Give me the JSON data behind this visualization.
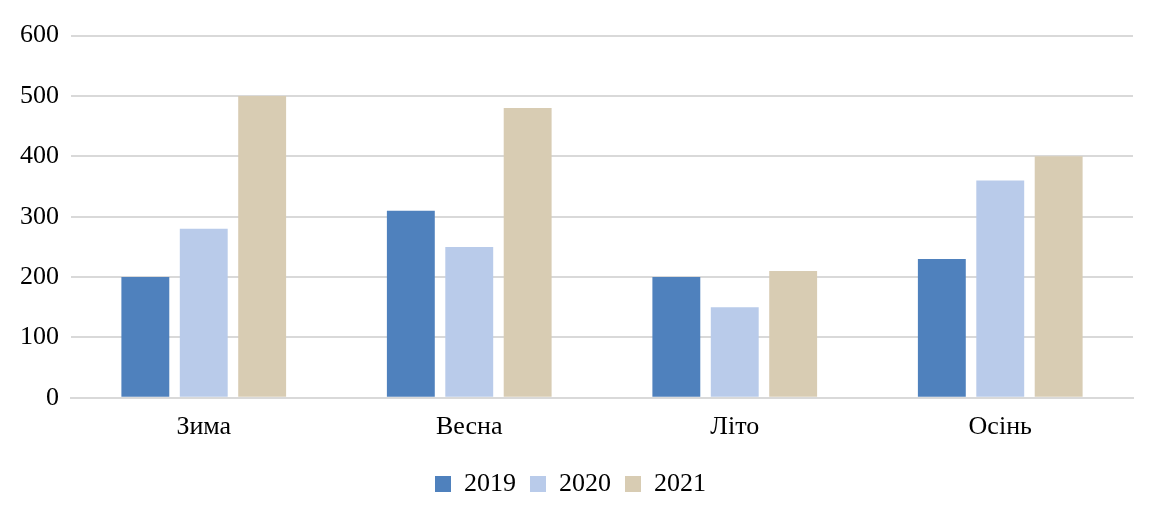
{
  "chart_data": {
    "type": "bar",
    "categories": [
      "Зима",
      "Весна",
      "Літо",
      "Осінь"
    ],
    "series": [
      {
        "name": "2019",
        "color": "#4f81bd",
        "values": [
          200,
          310,
          200,
          230
        ]
      },
      {
        "name": "2020",
        "color": "#b9cbea",
        "values": [
          280,
          250,
          150,
          360
        ]
      },
      {
        "name": "2021",
        "color": "#d8ccb3",
        "values": [
          500,
          480,
          210,
          400
        ]
      }
    ],
    "ylim": [
      0,
      600
    ],
    "yticks": [
      0,
      100,
      200,
      300,
      400,
      500,
      600
    ],
    "grid": "y",
    "legend": "bottom"
  }
}
